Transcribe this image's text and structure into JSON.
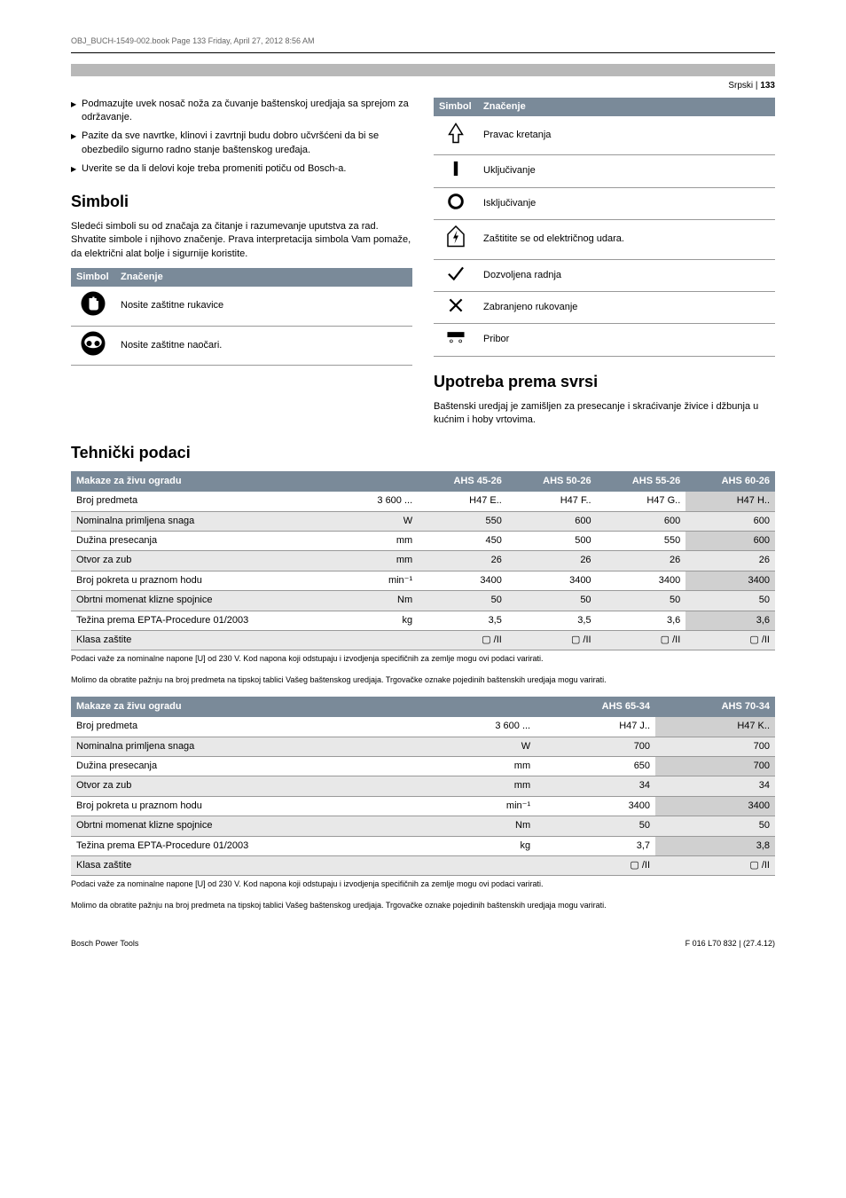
{
  "header": {
    "bookline": "OBJ_BUCH-1549-002.book  Page 133  Friday, April 27, 2012  8:56 AM",
    "langpage": "Srpski | ",
    "pagenum": "133"
  },
  "left": {
    "bullets": [
      "Podmazujte uvek nosač noža za čuvanje baštenskoj uredjaja sa sprejom za održavanje.",
      "Pazite da sve navrtke, klinovi i zavrtnji budu dobro učvršćeni da bi se obezbedilo sigurno radno stanje baštenskog uređaja.",
      "Uverite se da li delovi koje treba promeniti potiču od Bosch-a."
    ],
    "h_simboli": "Simboli",
    "simboli_intro": "Sledeći simboli su od značaja za čitanje i razumevanje uputstva za rad. Shvatite simbole i njihovo značenje. Prava interpretacija simbola Vam pomaže, da električni alat bolje i sigurnije koristite.",
    "th_simbol": "Simbol",
    "th_znacenje": "Značenje",
    "row_gloves": "Nosite zaštitne rukavice",
    "row_goggles": "Nosite zaštitne naočari."
  },
  "right": {
    "th_simbol": "Simbol",
    "th_znacenje": "Značenje",
    "rows": [
      "Pravac kretanja",
      "Uključivanje",
      "Isključivanje",
      "Zaštitite se od električnog udara.",
      "Dozvoljena radnja",
      "Zabranjeno rukovanje",
      "Pribor"
    ],
    "h_upotreba": "Upotreba prema svrsi",
    "upotreba_text": "Baštenski uredjaj je zamišljen za presecanje i skraćivanje živice i džbunja u kućnim i hoby vrtovima."
  },
  "tech": {
    "heading": "Tehnički podaci",
    "t1": {
      "header": [
        "Makaze za živu ogradu",
        "",
        "AHS 45-26",
        "AHS 50-26",
        "AHS 55-26",
        "AHS 60-26"
      ],
      "rows": [
        [
          "Broj predmeta",
          "3 600 ...",
          "H47 E..",
          "H47 F..",
          "H47 G..",
          "H47 H.."
        ],
        [
          "Nominalna primljena snaga",
          "W",
          "550",
          "600",
          "600",
          "600"
        ],
        [
          "Dužina presecanja",
          "mm",
          "450",
          "500",
          "550",
          "600"
        ],
        [
          "Otvor za zub",
          "mm",
          "26",
          "26",
          "26",
          "26"
        ],
        [
          "Broj pokreta u praznom hodu",
          "min⁻¹",
          "3400",
          "3400",
          "3400",
          "3400"
        ],
        [
          "Obrtni momenat klizne spojnice",
          "Nm",
          "50",
          "50",
          "50",
          "50"
        ],
        [
          "Težina prema EPTA-Procedure 01/2003",
          "kg",
          "3,5",
          "3,5",
          "3,6",
          "3,6"
        ],
        [
          "Klasa zaštite",
          "",
          "▢ /II",
          "▢ /II",
          "▢ /II",
          "▢ /II"
        ]
      ]
    },
    "t2": {
      "header": [
        "Makaze za živu ogradu",
        "",
        "AHS 65-34",
        "AHS 70-34"
      ],
      "rows": [
        [
          "Broj predmeta",
          "3 600 ...",
          "H47 J..",
          "H47 K.."
        ],
        [
          "Nominalna primljena snaga",
          "W",
          "700",
          "700"
        ],
        [
          "Dužina presecanja",
          "mm",
          "650",
          "700"
        ],
        [
          "Otvor za zub",
          "mm",
          "34",
          "34"
        ],
        [
          "Broj pokreta u praznom hodu",
          "min⁻¹",
          "3400",
          "3400"
        ],
        [
          "Obrtni momenat klizne spojnice",
          "Nm",
          "50",
          "50"
        ],
        [
          "Težina prema EPTA-Procedure 01/2003",
          "kg",
          "3,7",
          "3,8"
        ],
        [
          "Klasa zaštite",
          "",
          "▢ /II",
          "▢ /II"
        ]
      ]
    },
    "footnote1": "Podaci važe za nominalne napone [U] od 230 V. Kod napona koji odstupaju i izvodjenja specifičnih za zemlje mogu ovi podaci varirati.",
    "footnote2": "Molimo da obratite pažnju na broj predmeta na tipskoj tablici Vašeg baštenskog uredjaja. Trgovačke oznake pojedinih baštenskih uredjaja mogu varirati."
  },
  "footer": {
    "left": "Bosch Power Tools",
    "right": "F 016 L70 832 | (27.4.12)"
  }
}
